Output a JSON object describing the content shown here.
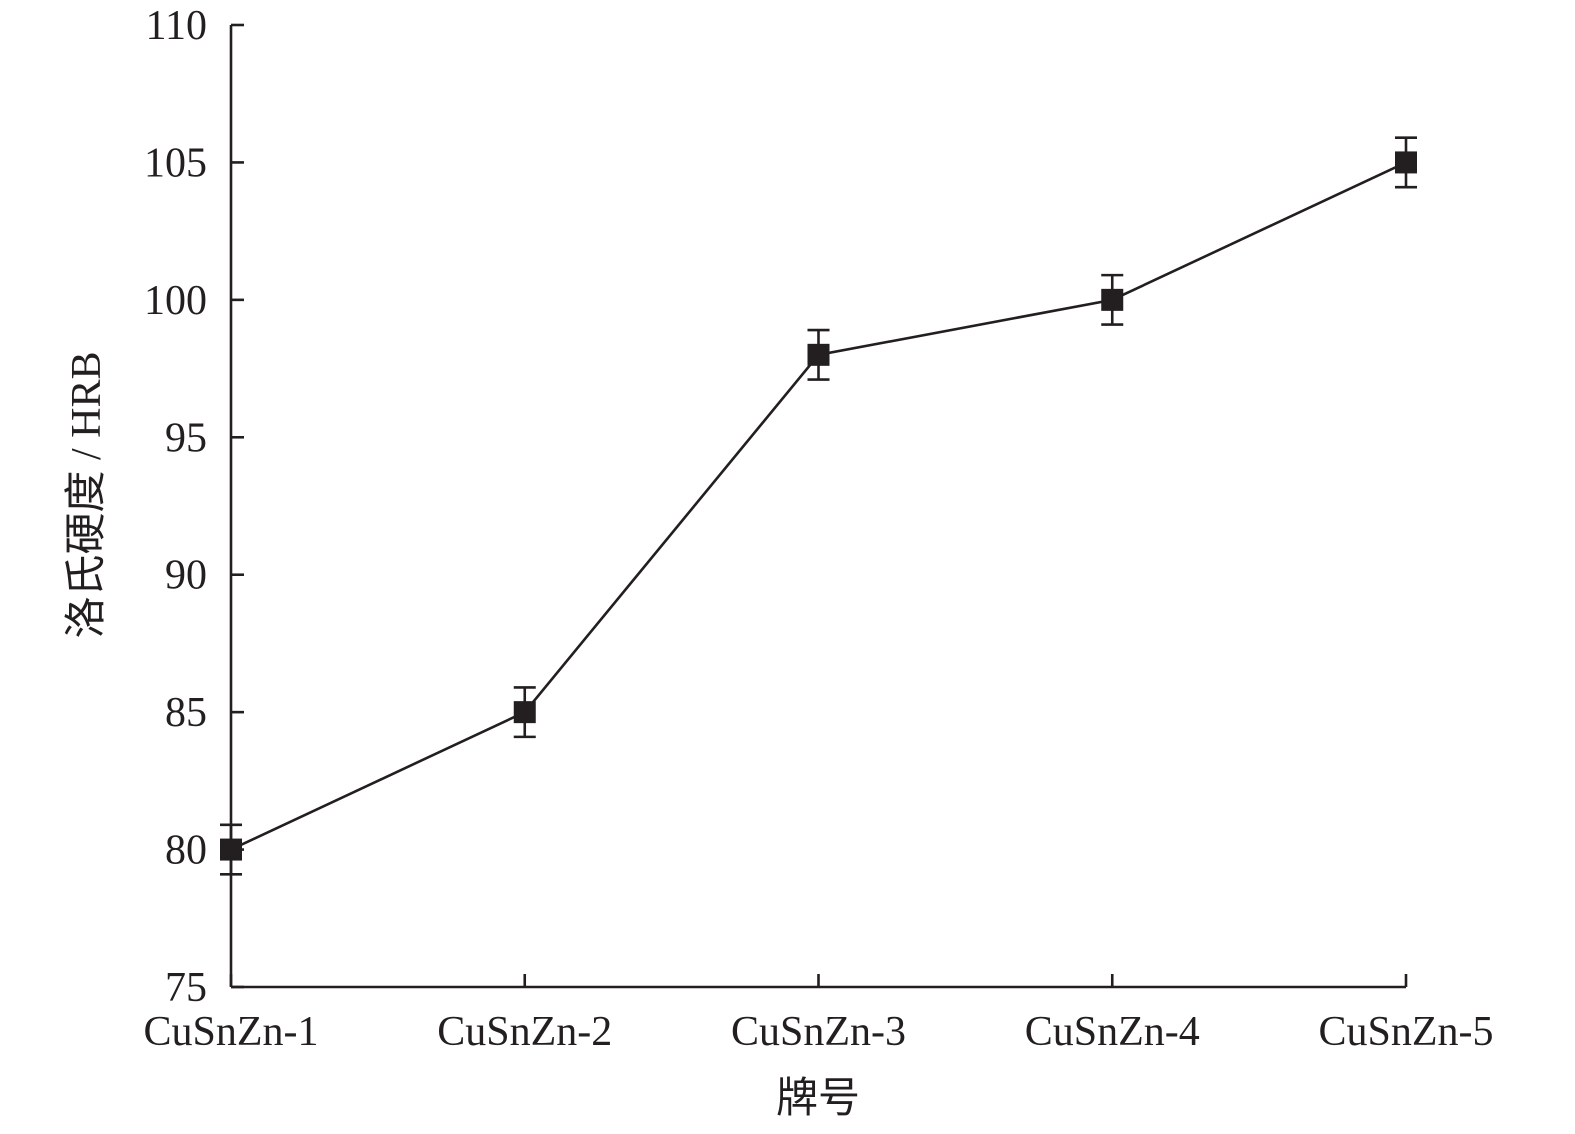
{
  "chart_data": {
    "type": "line",
    "title": "",
    "xlabel": "牌号",
    "ylabel": "洛氏硬度 / HRB",
    "categories": [
      "CuSnZn-1",
      "CuSnZn-2",
      "CuSnZn-3",
      "CuSnZn-4",
      "CuSnZn-5"
    ],
    "series": [
      {
        "values": [
          80,
          85,
          98,
          100,
          105
        ],
        "errors": [
          0.9,
          0.9,
          0.9,
          0.9,
          0.9
        ],
        "marker": "square",
        "color": "#231f20"
      }
    ],
    "ylim": [
      75,
      110
    ],
    "yticks": [
      75,
      80,
      85,
      90,
      95,
      100,
      105,
      110
    ],
    "grid": false
  }
}
